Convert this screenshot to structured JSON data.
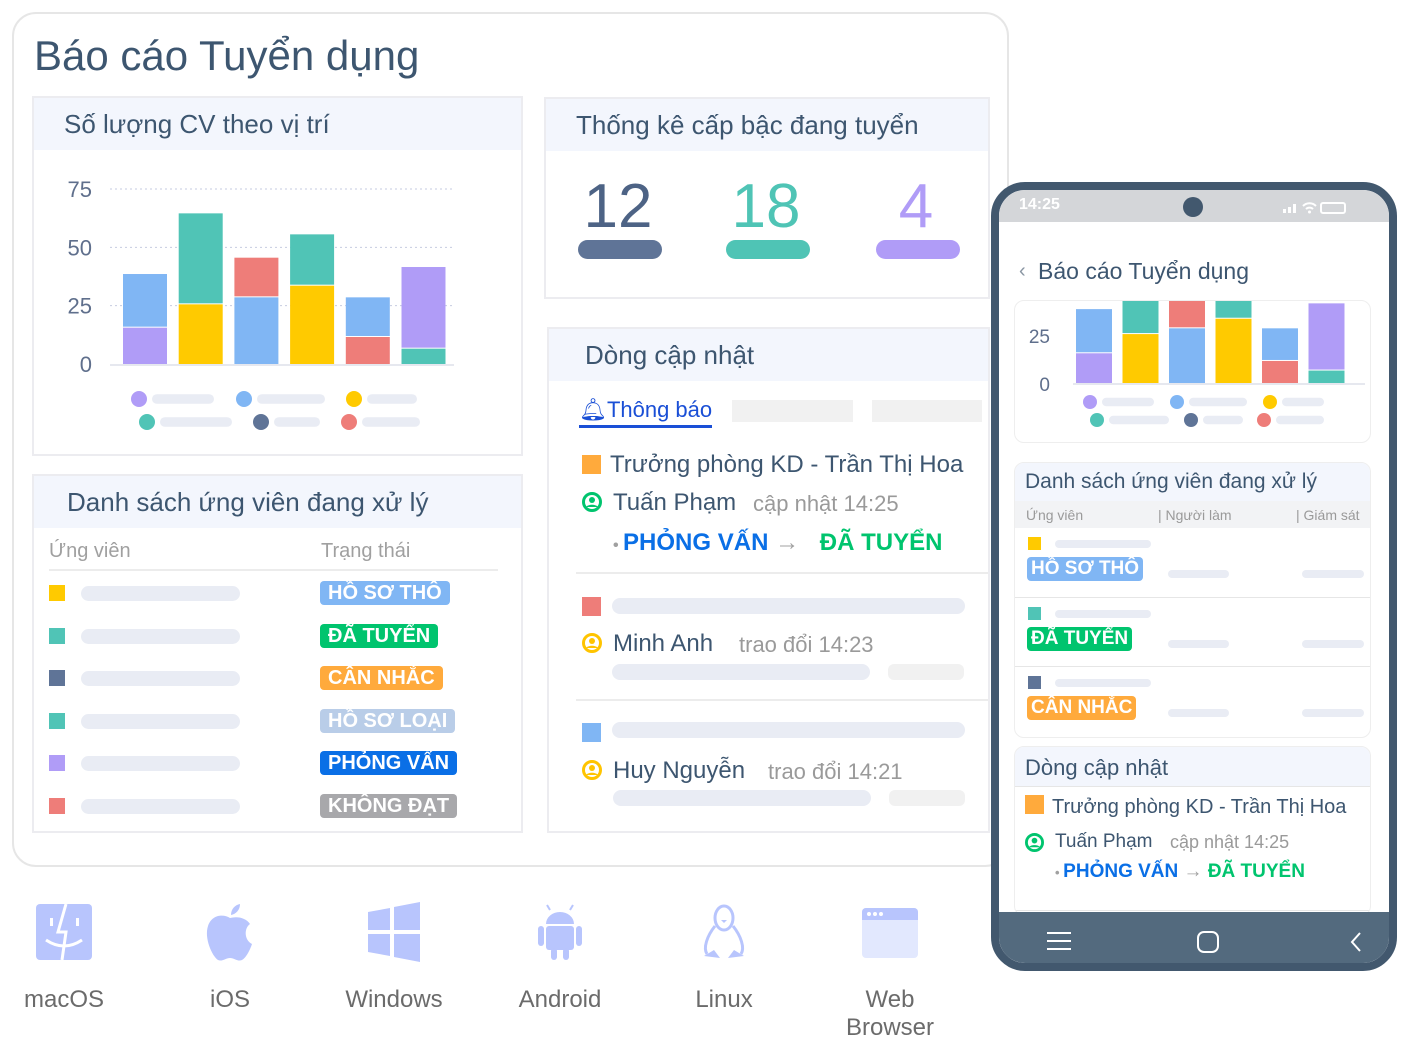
{
  "title": "Báo cáo Tuyển dụng",
  "cv_panel": {
    "title": "Số lượng CV theo vị trí"
  },
  "chart_data": {
    "type": "bar",
    "stacked": true,
    "yticks": [
      "0",
      "25",
      "50",
      "75"
    ],
    "ylim": [
      0,
      75
    ],
    "grid": true,
    "colors": {
      "purple": "#b09cf7",
      "blue": "#80b6f4",
      "yellow": "#ffca00",
      "teal": "#50c4b6",
      "slate": "#5f7497",
      "red": "#ee7d79"
    },
    "bars": [
      [
        {
          "color": "purple",
          "value": 16
        },
        {
          "color": "blue",
          "value": 23
        }
      ],
      [
        {
          "color": "yellow",
          "value": 26
        },
        {
          "color": "teal",
          "value": 39
        }
      ],
      [
        {
          "color": "blue",
          "value": 29
        },
        {
          "color": "red",
          "value": 17
        }
      ],
      [
        {
          "color": "yellow",
          "value": 34
        },
        {
          "color": "teal",
          "value": 22
        }
      ],
      [
        {
          "color": "red",
          "value": 12
        },
        {
          "color": "blue",
          "value": 17
        }
      ],
      [
        {
          "color": "teal",
          "value": 7
        },
        {
          "color": "purple",
          "value": 35
        }
      ]
    ],
    "legend_colors": [
      "purple",
      "blue",
      "yellow",
      "teal",
      "slate",
      "red"
    ],
    "legend": "bottom"
  },
  "stats": {
    "title": "Thống kê cấp bậc đang tuyển",
    "items": [
      {
        "value": "12",
        "color": "#5f7497",
        "text_color": "#4d6385"
      },
      {
        "value": "18",
        "color": "#4fc4b5",
        "text_color": "#4fc4b5"
      },
      {
        "value": "4",
        "color": "#b09cf7",
        "text_color": "#b09cf7"
      }
    ]
  },
  "candidates": {
    "title": "Danh sách ứng viên đang xử lý",
    "col_candidate": "Ứng viên",
    "col_status": "Trạng thái",
    "rows": [
      {
        "color": "#ffca00",
        "status": "HỒ SƠ THÔ",
        "badge": "#80b6f4"
      },
      {
        "color": "#50c4b6",
        "status": "ĐÃ TUYỂN",
        "badge": "#00c46e"
      },
      {
        "color": "#5f7497",
        "status": "CÂN NHẮC",
        "badge": "#ffaa3c"
      },
      {
        "color": "#50c4b6",
        "status": "HỒ SƠ LOẠI",
        "badge": "#b9cde8"
      },
      {
        "color": "#b09cf7",
        "status": "PHỎNG VẤN",
        "badge": "#0a6fe6"
      },
      {
        "color": "#ee7d79",
        "status": "KHÔNG ĐẠT",
        "badge": "#a8a8ab"
      }
    ]
  },
  "updates": {
    "title": "Dòng cập nhật",
    "tab": "Thông báo",
    "item1": {
      "title": "Trưởng phòng KD - Trần Thị Hoa",
      "person": "Tuấn Phạm",
      "action": "cập nhật 14:25",
      "from": "PHỎNG VẤN",
      "to": "ĐÃ TUYỂN"
    },
    "item2": {
      "person": "Minh Anh",
      "action": "trao đổi 14:23"
    },
    "item3": {
      "person": "Huy Nguyễn",
      "action": "trao đổi 14:21"
    }
  },
  "phone": {
    "time": "14:25",
    "title": "Báo cáo Tuyển dụng",
    "yticks": [
      "0",
      "25"
    ],
    "list_title": "Danh sách ứng viên đang xử lý",
    "col1": "Ứng viên",
    "col2": "| Người làm",
    "col3": "| Giám sát",
    "rows": [
      {
        "color": "#ffca00",
        "status": "HỒ SƠ THÔ",
        "badge": "#80b6f4"
      },
      {
        "color": "#50c4b6",
        "status": "ĐÃ TUYỂN",
        "badge": "#00c46e"
      },
      {
        "color": "#5f7497",
        "status": "CÂN NHẮC",
        "badge": "#ffaa3c"
      }
    ],
    "updates_title": "Dòng cập nhật",
    "update": {
      "title": "Trưởng phòng KD - Trần Thị Hoa",
      "person": "Tuấn Phạm",
      "action": "cập nhật 14:25",
      "from": "PHỎNG VẤN",
      "to": "ĐÃ TUYỂN"
    }
  },
  "platforms": [
    "macOS",
    "iOS",
    "Windows",
    "Android",
    "Linux",
    "Web Browser"
  ]
}
